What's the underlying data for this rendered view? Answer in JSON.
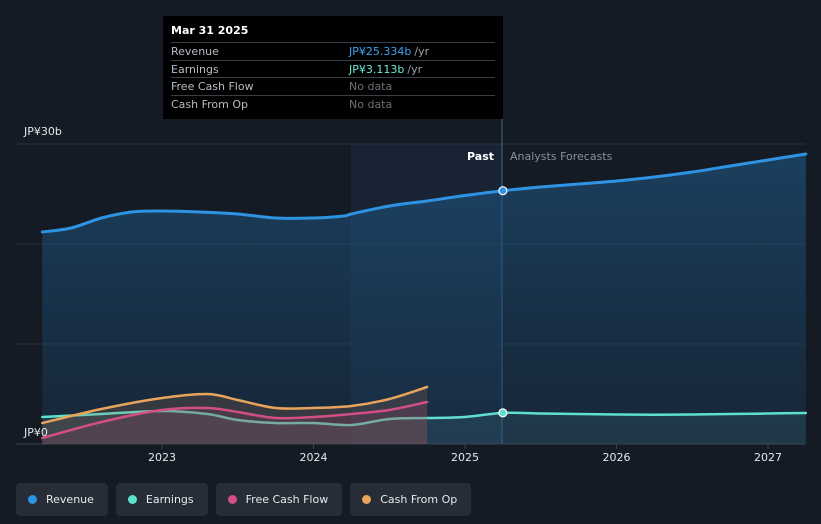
{
  "colors": {
    "revenue": "#2f93e3",
    "earnings": "#5fe0cf",
    "free_cash_flow": "#d24f85",
    "cash_from_op": "#e8a45a"
  },
  "tooltip": {
    "date": "Mar 31 2025",
    "rows": [
      {
        "label": "Revenue",
        "value": "JP¥25.334b",
        "unit": "/yr",
        "color": "#3ea3f0"
      },
      {
        "label": "Earnings",
        "value": "JP¥3.113b",
        "unit": "/yr",
        "color": "#6ee8d6"
      },
      {
        "label": "Free Cash Flow",
        "value": "No data",
        "unit": "",
        "color": "#6b7078"
      },
      {
        "label": "Cash From Op",
        "value": "No data",
        "unit": "",
        "color": "#6b7078"
      }
    ]
  },
  "legend": [
    {
      "label": "Revenue",
      "color": "#2f93e3"
    },
    {
      "label": "Earnings",
      "color": "#5fe0cf"
    },
    {
      "label": "Free Cash Flow",
      "color": "#d24f85"
    },
    {
      "label": "Cash From Op",
      "color": "#e8a45a"
    }
  ],
  "chart_data": {
    "type": "area",
    "title": "",
    "xlabel": "",
    "ylabel": "",
    "y_axis_labels": [
      "JP¥30b",
      "JP¥0"
    ],
    "ylim": [
      0,
      30
    ],
    "xlim": [
      2022.2,
      2027.25
    ],
    "x_ticks": [
      2023,
      2024,
      2025,
      2026,
      2027
    ],
    "x_tick_labels": [
      "2023",
      "2024",
      "2025",
      "2026",
      "2027"
    ],
    "past_label": "Past",
    "forecast_label": "Analysts Forecasts",
    "past_region_start": 2024.25,
    "divider_x": 2025.25,
    "series": [
      {
        "name": "Revenue",
        "key": "revenue",
        "x": [
          2022.21,
          2022.4,
          2022.6,
          2022.8,
          2023.0,
          2023.25,
          2023.5,
          2023.75,
          2024.0,
          2024.2,
          2024.25,
          2024.5,
          2024.75,
          2025.0,
          2025.25,
          2025.5,
          2025.75,
          2026.0,
          2026.25,
          2026.5,
          2026.75,
          2027.0,
          2027.25
        ],
        "values": [
          21.2,
          21.6,
          22.6,
          23.2,
          23.3,
          23.2,
          23.0,
          22.6,
          22.6,
          22.8,
          23.0,
          23.8,
          24.3,
          24.85,
          25.33,
          25.7,
          26.0,
          26.3,
          26.7,
          27.2,
          27.8,
          28.4,
          29.0
        ],
        "forecast_from": 2025.25
      },
      {
        "name": "Earnings",
        "key": "earnings",
        "x": [
          2022.21,
          2022.6,
          2023.0,
          2023.3,
          2023.5,
          2023.75,
          2024.0,
          2024.25,
          2024.5,
          2024.75,
          2025.0,
          2025.25,
          2025.5,
          2025.75,
          2026.0,
          2026.25,
          2026.5,
          2026.75,
          2027.0,
          2027.25
        ],
        "values": [
          2.7,
          3.0,
          3.3,
          3.0,
          2.4,
          2.1,
          2.1,
          1.9,
          2.5,
          2.6,
          2.7,
          3.11,
          3.05,
          3.0,
          2.95,
          2.93,
          2.95,
          3.0,
          3.05,
          3.1
        ],
        "forecast_from": 2025.25
      },
      {
        "name": "Free Cash Flow",
        "key": "free_cash_flow",
        "x": [
          2022.21,
          2022.6,
          2023.0,
          2023.3,
          2023.5,
          2023.75,
          2024.0,
          2024.25,
          2024.5,
          2024.75
        ],
        "values": [
          0.6,
          2.2,
          3.4,
          3.6,
          3.2,
          2.6,
          2.7,
          3.0,
          3.4,
          4.2
        ]
      },
      {
        "name": "Cash From Op",
        "key": "cash_from_op",
        "x": [
          2022.21,
          2022.6,
          2023.0,
          2023.3,
          2023.5,
          2023.75,
          2024.0,
          2024.25,
          2024.5,
          2024.75
        ],
        "values": [
          2.1,
          3.5,
          4.6,
          5.0,
          4.4,
          3.6,
          3.6,
          3.8,
          4.5,
          5.7
        ]
      }
    ]
  }
}
